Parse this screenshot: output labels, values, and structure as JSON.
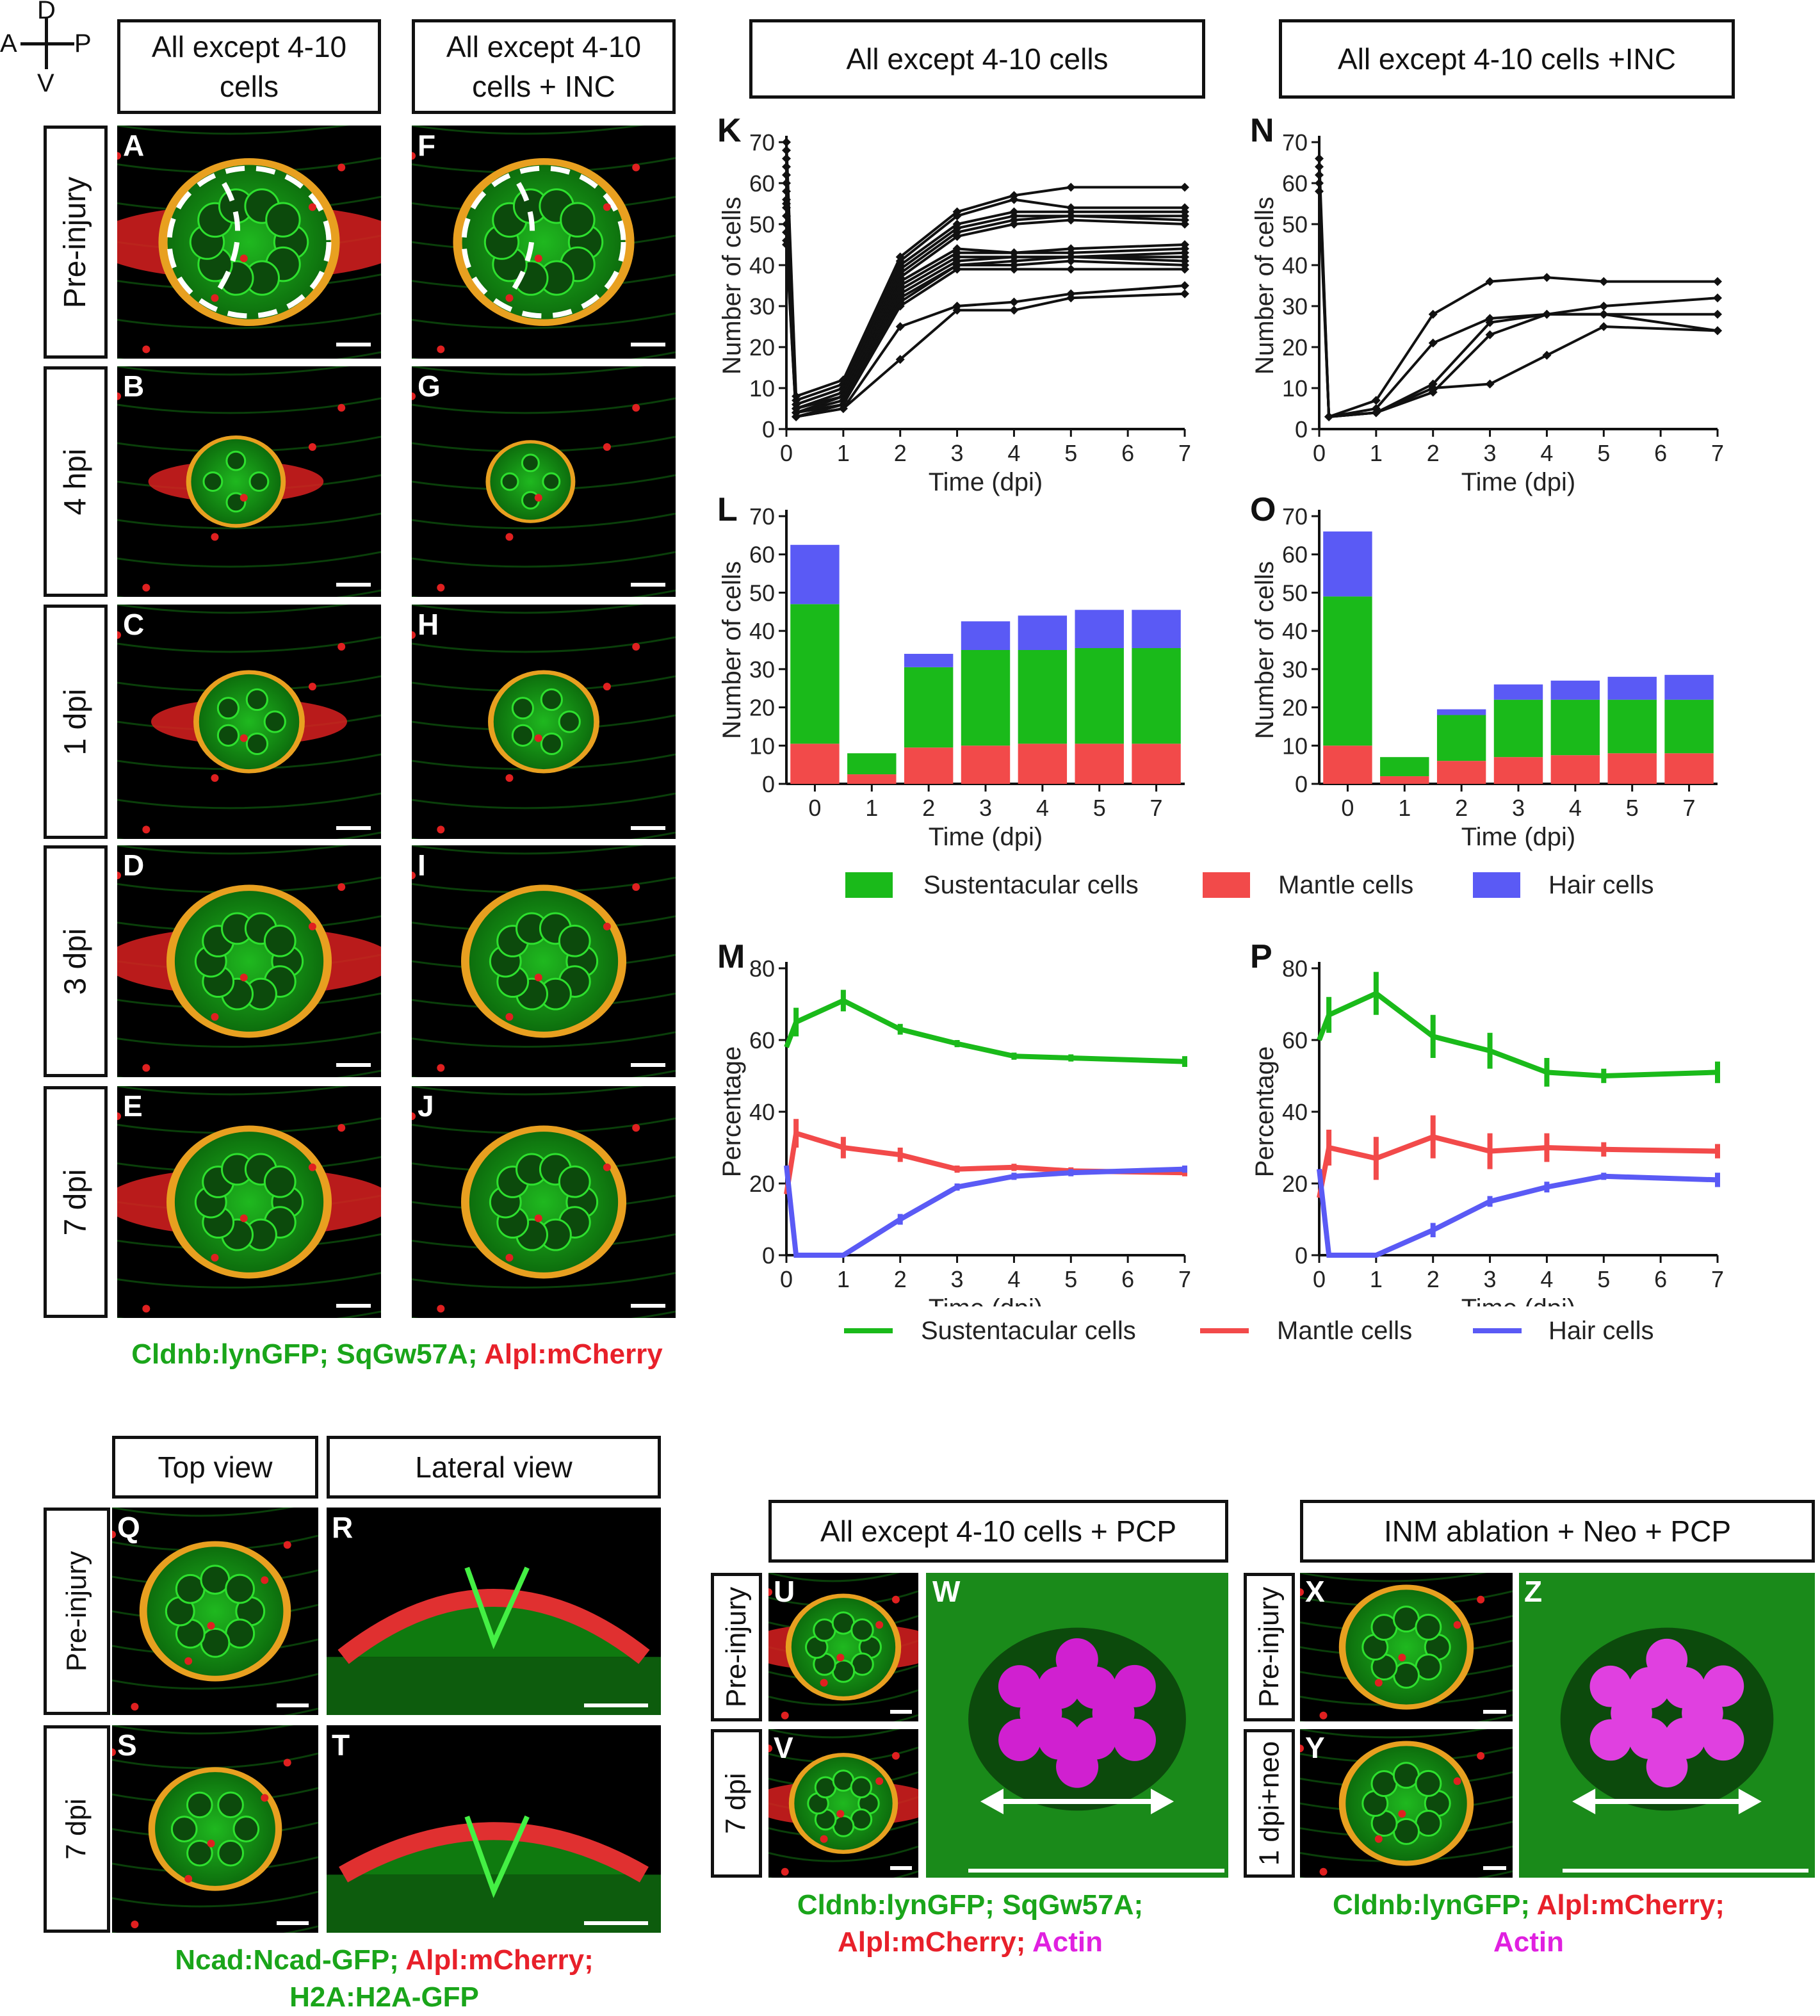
{
  "orientation": {
    "d": "D",
    "v": "V",
    "a": "A",
    "p": "P"
  },
  "top_headers": {
    "col1": [
      "All except 4-10",
      "cells"
    ],
    "col2": [
      "All except 4-10",
      "cells + INC"
    ],
    "chart_left": "All except 4-10 cells",
    "chart_right": "All except 4-10 cells +INC"
  },
  "row_labels": [
    "Pre-injury",
    "4 hpi",
    "1 dpi",
    "3 dpi",
    "7 dpi"
  ],
  "panel_letters": {
    "left": [
      "A",
      "B",
      "C",
      "D",
      "E"
    ],
    "right": [
      "F",
      "G",
      "H",
      "I",
      "J"
    ],
    "charts": [
      "K",
      "N",
      "L",
      "O",
      "M",
      "P"
    ],
    "bottom": [
      "Q",
      "R",
      "S",
      "T",
      "U",
      "V",
      "W",
      "X",
      "Y",
      "Z"
    ]
  },
  "caption_top": {
    "p1": "Cldnb:lynGFP;",
    "p2": "SqGw57A;",
    "p3": "Alpl:mCherry"
  },
  "bottom_headers": {
    "top_view": "Top view",
    "lateral_view": "Lateral view",
    "pcp": "All except 4-10 cells + PCP",
    "inm": "INM ablation + Neo + PCP"
  },
  "bottom_row_labels": {
    "q": "Pre-injury",
    "s": "7 dpi",
    "u": "Pre-injury",
    "v": "7 dpi",
    "x": "Pre-injury",
    "y": "1 dpi+neo"
  },
  "caption_qt": {
    "l1a": "Ncad:Ncad-GFP;",
    "l1b": "Alpl:mCherry;",
    "l2": "H2A:H2A-GFP"
  },
  "caption_uw": {
    "l1a": "Cldnb:lynGFP;",
    "l1b": "SqGw57A;",
    "l2a": "Alpl:mCherry;",
    "l2b": "Actin"
  },
  "caption_xz": {
    "l1a": "Cldnb:lynGFP;",
    "l1b": "Alpl:mCherry;",
    "l2": "Actin"
  },
  "colors": {
    "sust": "#1aba1a",
    "mantle": "#f24a4a",
    "hair": "#5a5af5"
  },
  "legend": {
    "sust": "Sustentacular cells",
    "mantle": "Mantle cells",
    "hair": "Hair cells"
  },
  "chart_data": [
    {
      "id": "K",
      "type": "line",
      "xlabel": "Time (dpi)",
      "ylabel": "Number of cells",
      "xlim": [
        0,
        7
      ],
      "ylim": [
        0,
        70
      ],
      "xticks": [
        0,
        1,
        2,
        3,
        4,
        5,
        6,
        7
      ],
      "yticks": [
        0,
        10,
        20,
        30,
        40,
        50,
        60,
        70
      ],
      "x": [
        0,
        0.17,
        1,
        2,
        3,
        4,
        5,
        7
      ],
      "series": [
        {
          "values": [
            70,
            8,
            12,
            42,
            53,
            57,
            59,
            59
          ]
        },
        {
          "values": [
            68,
            7,
            11,
            41,
            52,
            56,
            54,
            54
          ]
        },
        {
          "values": [
            66,
            6,
            10,
            40,
            50,
            53,
            53,
            53
          ]
        },
        {
          "values": [
            64,
            6,
            10,
            39,
            49,
            52,
            52,
            52
          ]
        },
        {
          "values": [
            62,
            5,
            9,
            38,
            48,
            51,
            52,
            51
          ]
        },
        {
          "values": [
            60,
            5,
            9,
            37,
            47,
            50,
            51,
            50
          ]
        },
        {
          "values": [
            58,
            5,
            8,
            36,
            44,
            43,
            44,
            45
          ]
        },
        {
          "values": [
            56,
            4,
            8,
            35,
            43,
            43,
            43,
            44
          ]
        },
        {
          "values": [
            55,
            4,
            7,
            34,
            42,
            42,
            42,
            43
          ]
        },
        {
          "values": [
            54,
            4,
            7,
            33,
            41,
            42,
            42,
            42
          ]
        },
        {
          "values": [
            52,
            4,
            6,
            32,
            40,
            41,
            42,
            41
          ]
        },
        {
          "values": [
            50,
            3,
            6,
            31,
            40,
            40,
            41,
            40
          ]
        },
        {
          "values": [
            48,
            3,
            6,
            30,
            39,
            39,
            39,
            39
          ]
        },
        {
          "values": [
            46,
            3,
            5,
            25,
            30,
            31,
            33,
            35
          ]
        },
        {
          "values": [
            45,
            3,
            5,
            17,
            29,
            29,
            32,
            33
          ]
        }
      ]
    },
    {
      "id": "N",
      "type": "line",
      "xlabel": "Time (dpi)",
      "ylabel": "Number of cells",
      "xlim": [
        0,
        7
      ],
      "ylim": [
        0,
        70
      ],
      "xticks": [
        0,
        1,
        2,
        3,
        4,
        5,
        6,
        7
      ],
      "yticks": [
        0,
        10,
        20,
        30,
        40,
        50,
        60,
        70
      ],
      "x": [
        0,
        0.17,
        1,
        2,
        3,
        4,
        5,
        7
      ],
      "series": [
        {
          "values": [
            66,
            3,
            7,
            28,
            36,
            37,
            36,
            36
          ]
        },
        {
          "values": [
            64,
            3,
            5,
            21,
            27,
            28,
            30,
            32
          ]
        },
        {
          "values": [
            62,
            3,
            4,
            11,
            26,
            28,
            28,
            28
          ]
        },
        {
          "values": [
            60,
            3,
            4,
            9,
            23,
            28,
            28,
            24
          ]
        },
        {
          "values": [
            58,
            3,
            4,
            10,
            11,
            18,
            25,
            24
          ]
        }
      ]
    },
    {
      "id": "L",
      "type": "bar",
      "stacked": true,
      "xlabel": "Time (dpi)",
      "ylabel": "Number of cells",
      "ylim": [
        0,
        70
      ],
      "yticks": [
        0,
        10,
        20,
        30,
        40,
        50,
        60,
        70
      ],
      "categories": [
        "0",
        "1",
        "2",
        "3",
        "4",
        "5",
        "7"
      ],
      "series": [
        {
          "name": "Mantle cells",
          "values": [
            10.5,
            2.5,
            9.5,
            10,
            10.5,
            10.5,
            10.5
          ]
        },
        {
          "name": "Sustentacular cells",
          "values": [
            36.5,
            5.5,
            21,
            25,
            24.5,
            25,
            25
          ]
        },
        {
          "name": "Hair cells",
          "values": [
            15.5,
            0,
            3.5,
            7.5,
            9,
            10,
            10
          ]
        }
      ]
    },
    {
      "id": "O",
      "type": "bar",
      "stacked": true,
      "xlabel": "Time (dpi)",
      "ylabel": "Number of cells",
      "ylim": [
        0,
        70
      ],
      "yticks": [
        0,
        10,
        20,
        30,
        40,
        50,
        60,
        70
      ],
      "categories": [
        "0",
        "1",
        "2",
        "3",
        "4",
        "5",
        "7"
      ],
      "series": [
        {
          "name": "Mantle cells",
          "values": [
            10,
            2,
            6,
            7,
            7.5,
            8,
            8
          ]
        },
        {
          "name": "Sustentacular cells",
          "values": [
            39,
            5,
            12,
            15,
            14.5,
            14,
            14
          ]
        },
        {
          "name": "Hair cells",
          "values": [
            17,
            0,
            1.5,
            4,
            5,
            6,
            6.5
          ]
        }
      ]
    },
    {
      "id": "M",
      "type": "line",
      "xlabel": "Time (dpi)",
      "ylabel": "Percentage",
      "xlim": [
        0,
        7
      ],
      "ylim": [
        0,
        80
      ],
      "xticks": [
        0,
        1,
        2,
        3,
        4,
        5,
        6,
        7
      ],
      "yticks": [
        0,
        20,
        40,
        60,
        80
      ],
      "x": [
        0,
        0.17,
        1,
        2,
        3,
        4,
        5,
        7
      ],
      "series": [
        {
          "name": "Sustentacular cells",
          "values": [
            58,
            65,
            71,
            63,
            59,
            55.5,
            55,
            54
          ],
          "err": [
            0,
            4,
            3,
            1.5,
            1,
            1,
            1,
            1.5
          ]
        },
        {
          "name": "Mantle cells",
          "values": [
            17,
            34,
            30,
            28,
            24,
            24.5,
            23.5,
            23
          ],
          "err": [
            0,
            4,
            3,
            2,
            1,
            1,
            1,
            1
          ]
        },
        {
          "name": "Hair cells",
          "values": [
            25,
            0,
            0,
            10,
            19,
            22,
            23,
            24
          ],
          "err": [
            0,
            0,
            0,
            1.5,
            1,
            1,
            1,
            1
          ]
        }
      ]
    },
    {
      "id": "P",
      "type": "line",
      "xlabel": "Time (dpi)",
      "ylabel": "Percentage",
      "xlim": [
        0,
        7
      ],
      "ylim": [
        0,
        80
      ],
      "xticks": [
        0,
        1,
        2,
        3,
        4,
        5,
        6,
        7
      ],
      "yticks": [
        0,
        20,
        40,
        60,
        80
      ],
      "x": [
        0,
        0.17,
        1,
        2,
        3,
        4,
        5,
        7
      ],
      "series": [
        {
          "name": "Sustentacular cells",
          "values": [
            60,
            67,
            73,
            61,
            57,
            51,
            50,
            51
          ],
          "err": [
            0,
            5,
            6,
            6,
            5,
            4,
            2,
            3
          ]
        },
        {
          "name": "Mantle cells",
          "values": [
            16,
            30,
            27,
            33,
            29,
            30,
            29.5,
            29
          ],
          "err": [
            0,
            5,
            6,
            6,
            5,
            4,
            2,
            2
          ]
        },
        {
          "name": "Hair cells",
          "values": [
            24,
            0,
            0,
            7,
            15,
            19,
            22,
            21
          ],
          "err": [
            0,
            0,
            0,
            2,
            1.5,
            1.5,
            1,
            2
          ]
        }
      ]
    }
  ]
}
